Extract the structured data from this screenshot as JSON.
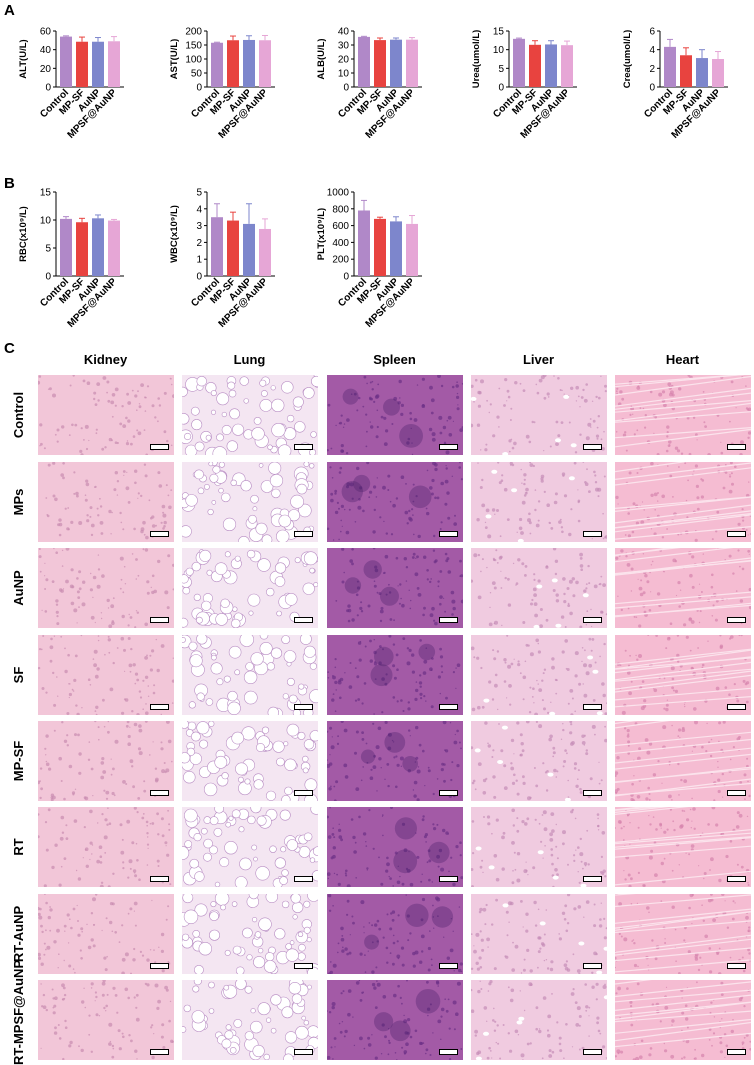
{
  "panels": {
    "a": "A",
    "b": "B",
    "c": "C"
  },
  "colors": {
    "control": "#b088c8",
    "mpsf": "#e8433f",
    "aunp": "#7d86cc",
    "mpsf_aunp": "#e6a6d6"
  },
  "chart_data": [
    {
      "type": "bar",
      "ylabel": "ALT(U/L)",
      "categories": [
        "Control",
        "MP-SF",
        "AuNP",
        "MPSF@AuNP"
      ],
      "values": [
        54,
        48.5,
        48.5,
        49
      ],
      "errors": [
        0.8,
        5,
        4.5,
        5
      ],
      "ylim": [
        0,
        60
      ],
      "yticks": [
        0,
        20,
        40,
        60
      ]
    },
    {
      "type": "bar",
      "ylabel": "AST(U/L)",
      "categories": [
        "Control",
        "MP-SF",
        "AuNP",
        "MPSF@AuNP"
      ],
      "values": [
        158,
        167,
        168,
        167
      ],
      "errors": [
        2,
        15,
        15,
        17
      ],
      "ylim": [
        0,
        200
      ],
      "yticks": [
        0,
        50,
        100,
        150,
        200
      ]
    },
    {
      "type": "bar",
      "ylabel": "ALB(U/L)",
      "categories": [
        "Control",
        "MP-SF",
        "AuNP",
        "MPSF@AuNP"
      ],
      "values": [
        35.8,
        33.5,
        33.8,
        33.8
      ],
      "errors": [
        0.4,
        1.5,
        1.2,
        1.5
      ],
      "ylim": [
        0,
        40
      ],
      "yticks": [
        0,
        10,
        20,
        30,
        40
      ]
    },
    {
      "type": "bar",
      "ylabel": "Urea(umol/L)",
      "categories": [
        "Control",
        "MP-SF",
        "AuNP",
        "MPSF@AuNP"
      ],
      "values": [
        12.9,
        11.3,
        11.4,
        11.2
      ],
      "errors": [
        0.2,
        1.1,
        1,
        1.1
      ],
      "ylim": [
        0,
        15
      ],
      "yticks": [
        0,
        5,
        10,
        15
      ]
    },
    {
      "type": "bar",
      "ylabel": "Crea(umol/L)",
      "categories": [
        "Control",
        "MP-SF",
        "AuNP",
        "MPSF@AuNP"
      ],
      "values": [
        4.3,
        3.4,
        3.1,
        3
      ],
      "errors": [
        0.8,
        0.8,
        0.9,
        0.8
      ],
      "ylim": [
        0,
        6
      ],
      "yticks": [
        0,
        2,
        4,
        6
      ]
    },
    {
      "type": "bar",
      "ylabel": "RBC(x10⁹/L)",
      "categories": [
        "Control",
        "MP-SF",
        "AuNP",
        "MPSF@AuNP"
      ],
      "values": [
        10.2,
        9.6,
        10.3,
        9.9
      ],
      "errors": [
        0.4,
        0.7,
        0.6,
        0.2
      ],
      "ylim": [
        0,
        15
      ],
      "yticks": [
        0,
        5,
        10,
        15
      ]
    },
    {
      "type": "bar",
      "ylabel": "WBC(x10⁹/L)",
      "categories": [
        "Control",
        "MP-SF",
        "AuNP",
        "MPSF@AuNP"
      ],
      "values": [
        3.5,
        3.3,
        3.1,
        2.8
      ],
      "errors": [
        0.8,
        0.5,
        1.2,
        0.6
      ],
      "ylim": [
        0,
        5
      ],
      "yticks": [
        0,
        1,
        2,
        3,
        4,
        5
      ]
    },
    {
      "type": "bar",
      "ylabel": "PLT(x10⁹/L)",
      "categories": [
        "Control",
        "MP-SF",
        "AuNP",
        "MPSF@AuNP"
      ],
      "values": [
        780,
        680,
        650,
        620
      ],
      "errors": [
        120,
        20,
        55,
        100
      ],
      "ylim": [
        0,
        1000
      ],
      "yticks": [
        0,
        200,
        400,
        600,
        800,
        1000
      ]
    }
  ],
  "histology": {
    "columns": [
      "Kidney",
      "Lung",
      "Spleen",
      "Liver",
      "Heart"
    ],
    "rows": [
      "Control",
      "MPs",
      "AuNP",
      "SF",
      "MP-SF",
      "RT",
      "RT-AuNP",
      "RT-MPSF@AuNP"
    ],
    "tissue_colors": {
      "Kidney": [
        "#f2c6d8",
        "#c98bb0"
      ],
      "Lung": [
        "#f4e6f2",
        "#b98ec4"
      ],
      "Spleen": [
        "#a35aa6",
        "#6b2f86"
      ],
      "Liver": [
        "#f0cbe0",
        "#c58cb7"
      ],
      "Heart": [
        "#f5bcd2",
        "#d683ad"
      ]
    }
  }
}
